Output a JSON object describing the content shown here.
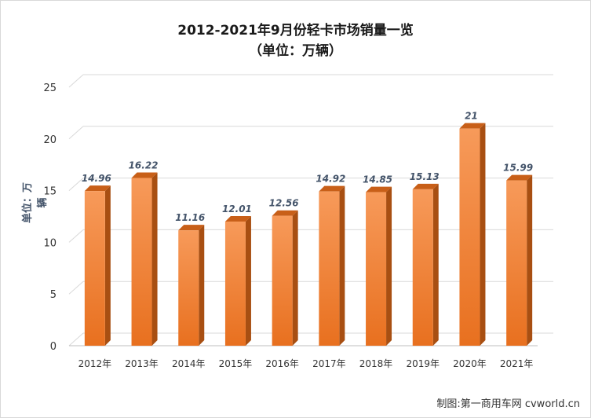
{
  "chart_data": {
    "type": "bar",
    "title": "2012-2021年9月份轻卡市场销量一览",
    "subtitle": "（单位：万辆）",
    "xlabel": "",
    "ylabel": "单位：万辆",
    "categories": [
      "2012年",
      "2013年",
      "2014年",
      "2015年",
      "2016年",
      "2017年",
      "2018年",
      "2019年",
      "2020年",
      "2021年"
    ],
    "values": [
      14.96,
      16.22,
      11.16,
      12.01,
      12.56,
      14.92,
      14.85,
      15.13,
      21,
      15.99
    ],
    "value_labels": [
      "14.96",
      "16.22",
      "11.16",
      "12.01",
      "12.56",
      "14.92",
      "14.85",
      "15.13",
      "21",
      "15.99"
    ],
    "ylim": [
      0,
      25
    ],
    "yticks": [
      "0",
      "5",
      "10",
      "15",
      "20",
      "25"
    ],
    "grid": true,
    "legend": "none",
    "colors": {
      "bar_top": "#f79a5a",
      "bar_bottom": "#e8701f",
      "bar_side": "#a84f12",
      "bar_cap": "#c85f18",
      "grid": "#d9d9d9",
      "label": "#44546a"
    }
  },
  "source": "制图:第一商用车网 cvworld.cn"
}
